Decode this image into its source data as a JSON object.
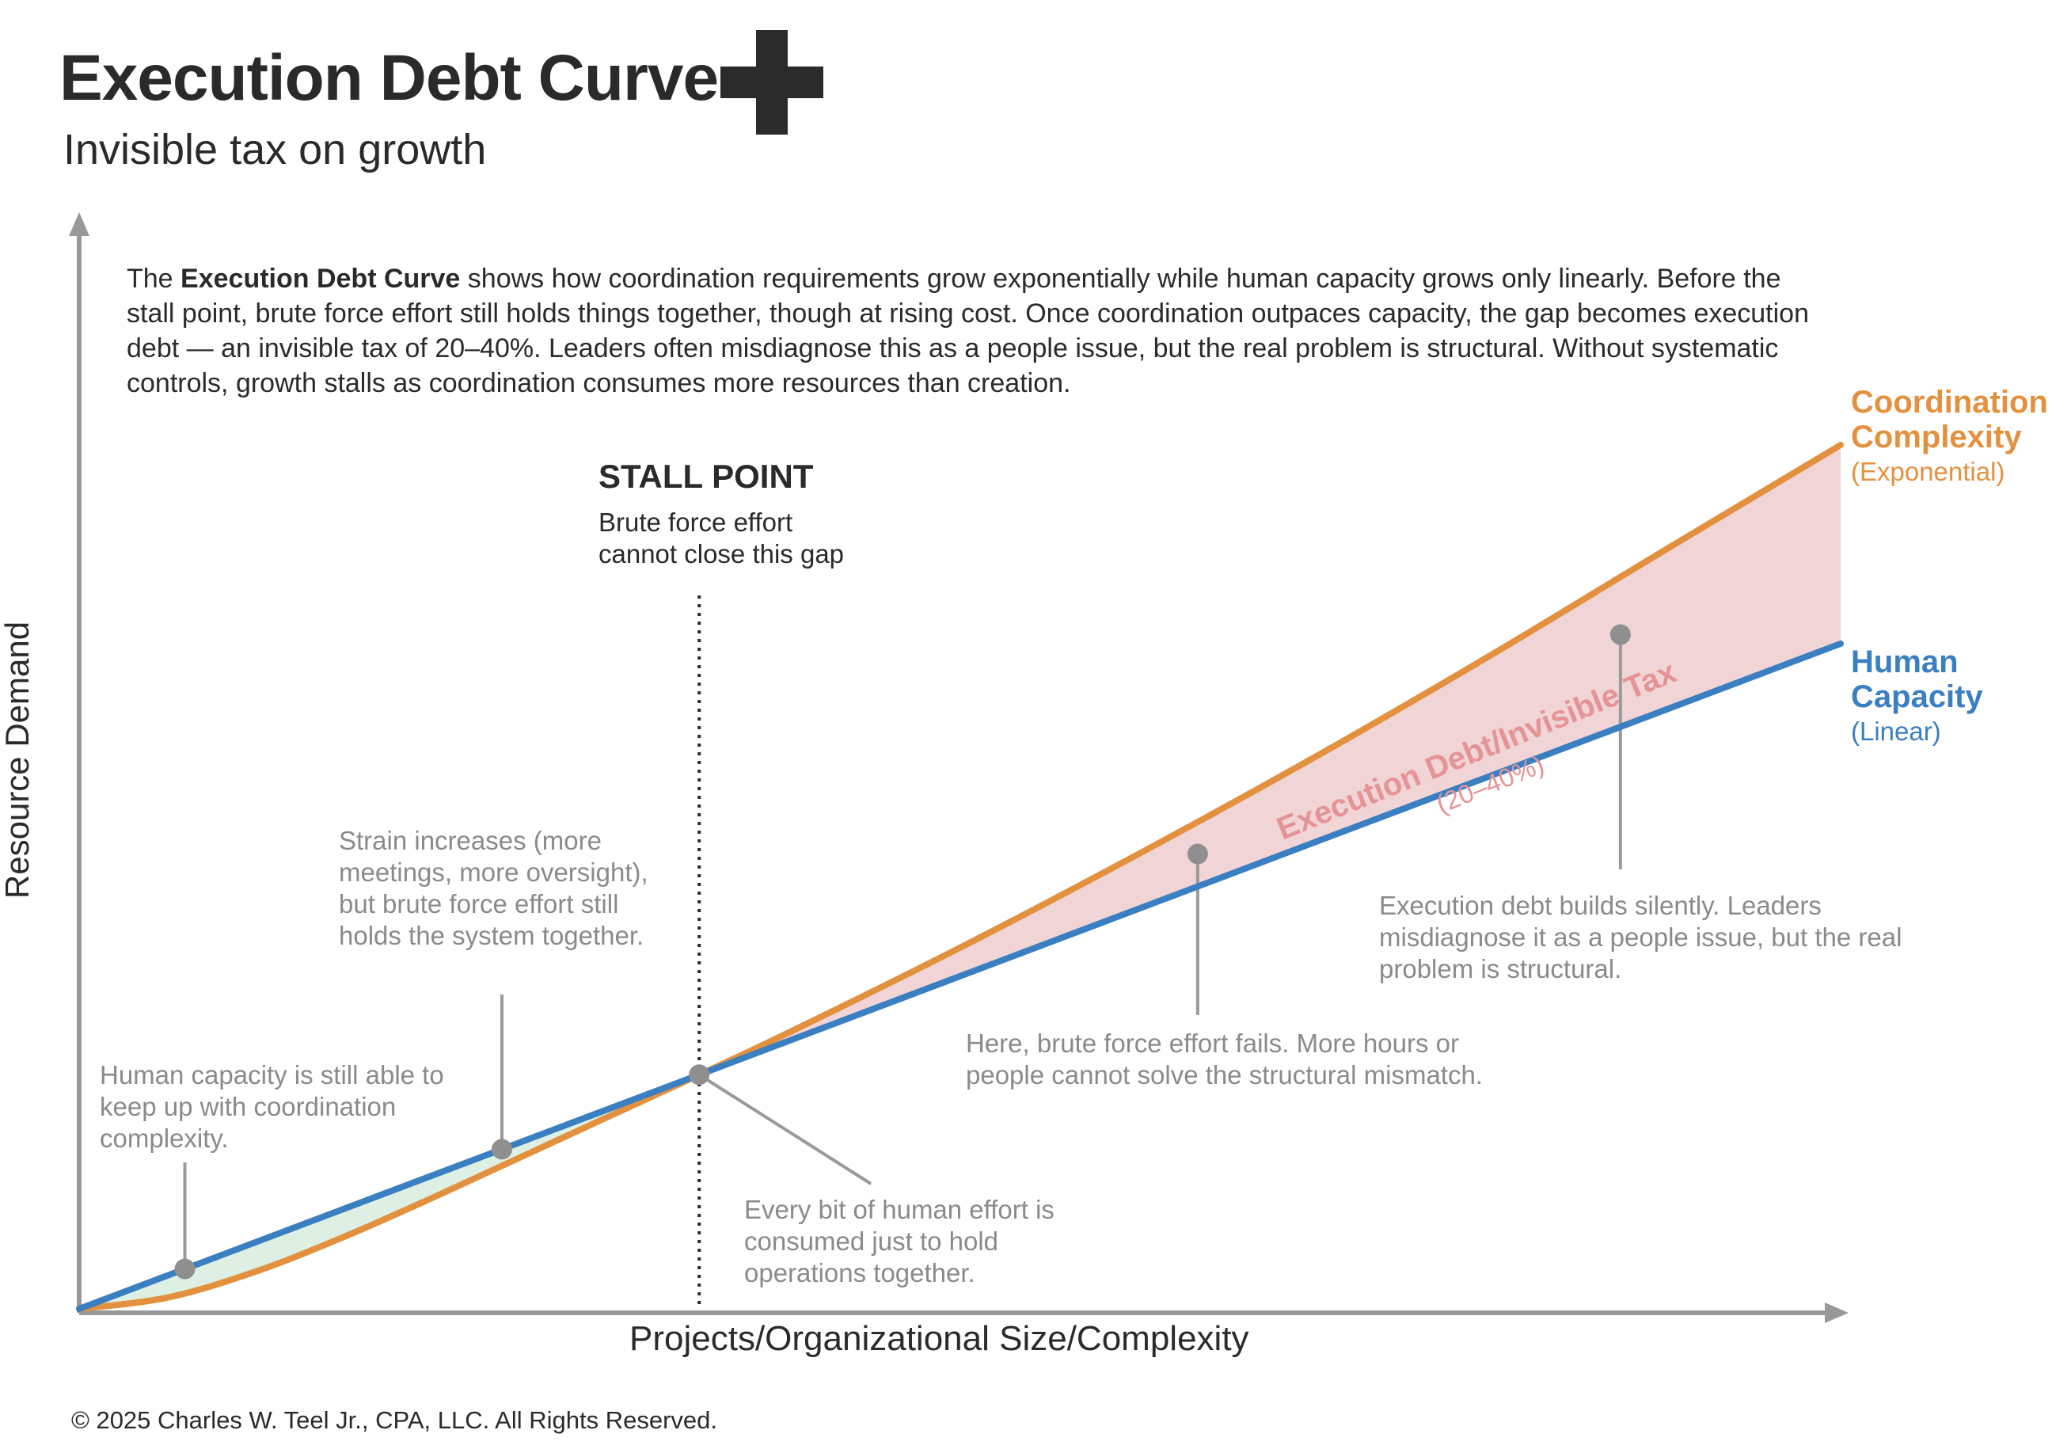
{
  "header": {
    "title": "Execution Debt Curve",
    "subtitle": "Invisible tax on growth",
    "logo_icon": "plus-icon"
  },
  "description": {
    "lead": "The ",
    "bold": "Execution Debt Curve",
    "rest": " shows how coordination requirements grow exponentially while human capacity grows only linearly. Before the stall point, brute force effort still holds things together, though at rising cost. Once coordination outpaces capacity, the gap becomes execution debt — an invisible tax of 20–40%. Leaders often misdiagnose this as a people issue, but the real problem is structural. Without systematic controls, growth stalls as coordination consumes more resources than creation."
  },
  "chart_data": {
    "type": "line",
    "xlabel": "Projects/Organizational Size/Complexity",
    "ylabel": "Resource Demand",
    "xlim": [
      0,
      1
    ],
    "ylim": [
      0,
      1
    ],
    "stall_point_x": 0.352,
    "series": [
      {
        "name": "Coordination Complexity",
        "sub": "(Exponential)",
        "color": "#E3913F",
        "x": [
          0,
          0.05,
          0.1,
          0.15,
          0.2,
          0.25,
          0.3,
          0.352,
          0.4,
          0.5,
          0.6,
          0.7,
          0.8,
          0.9,
          1.0
        ],
        "y": [
          0,
          0.013,
          0.043,
          0.083,
          0.128,
          0.175,
          0.222,
          0.271,
          0.317,
          0.418,
          0.525,
          0.637,
          0.755,
          0.878,
          1.0
        ]
      },
      {
        "name": "Human Capacity",
        "sub": "(Linear)",
        "color": "#3A7FC1",
        "x": [
          0,
          1.0
        ],
        "y": [
          0,
          0.77
        ]
      }
    ],
    "region_labels": {
      "gap_title": "Execution Debt/Invisible Tax",
      "gap_pct": "(20–40%)"
    },
    "fill_colors": {
      "early_gap": "#DDF0E3",
      "debt_gap": "#F0D4D6",
      "debt_text": "#E59395"
    },
    "stall": {
      "title": "STALL POINT",
      "text": "Brute force effort cannot close this gap"
    },
    "annotations": [
      {
        "text": "Human capacity is still able to keep up with coordination complexity.",
        "x": 0.06
      },
      {
        "text": "Strain increases (more meetings, more oversight), but brute force effort still holds the system together.",
        "x": 0.24
      },
      {
        "text": "Every bit of human effort is consumed just to hold operations together.",
        "x": 0.352
      },
      {
        "text": "Here, brute force effort fails. More hours or people cannot solve the structural mismatch.",
        "x": 0.635
      },
      {
        "text": "Execution debt builds silently. Leaders misdiagnose it as a people issue, but the real problem is structural.",
        "x": 0.875
      }
    ]
  },
  "footer": {
    "copyright": "© 2025 Charles W. Teel Jr., CPA, LLC.  All Rights Reserved."
  }
}
